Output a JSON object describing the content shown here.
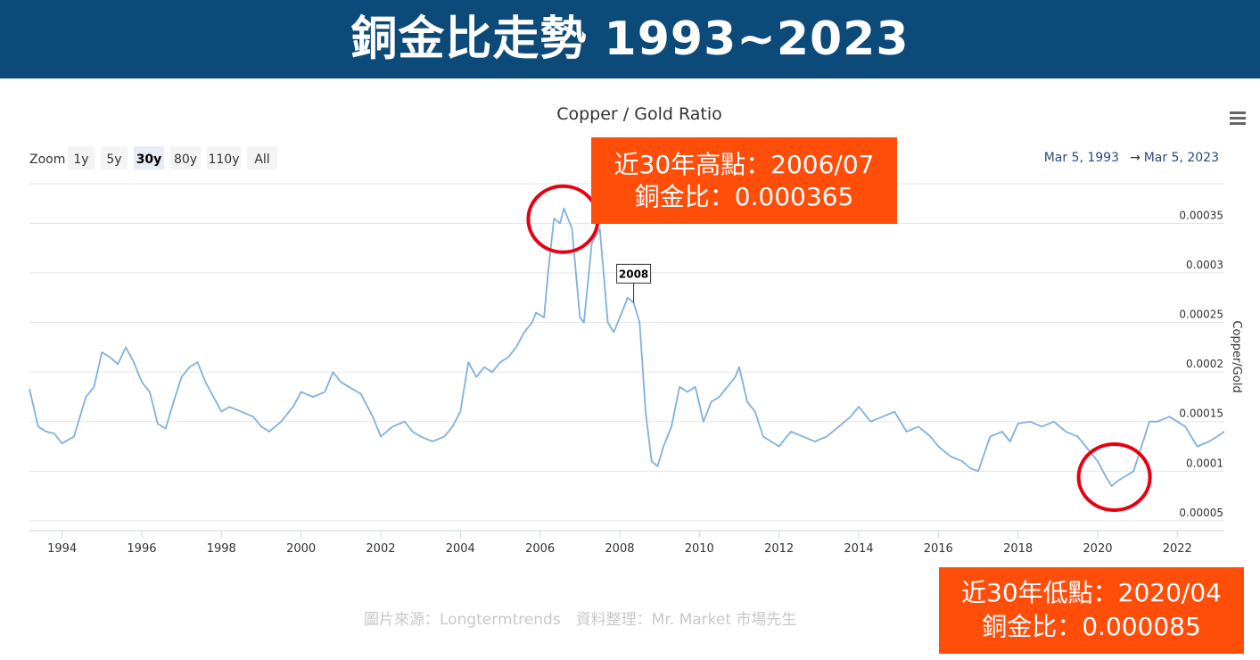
{
  "banner": {
    "title": "銅金比走勢 1993~2023",
    "bg_color": "#0c4a7a"
  },
  "chart_data": {
    "type": "line",
    "title": "Copper / Gold Ratio",
    "ylabel": "Copper/Gold",
    "xlim": [
      1993.18,
      2023.18
    ],
    "ylim": [
      4e-05,
      0.00039
    ],
    "x_ticks": [
      "1994",
      "1996",
      "1998",
      "2000",
      "2002",
      "2004",
      "2006",
      "2008",
      "2010",
      "2012",
      "2014",
      "2016",
      "2018",
      "2020",
      "2022"
    ],
    "y_ticks": [
      "0.00005",
      "0.0001",
      "0.00015",
      "0.0002",
      "0.00025",
      "0.0003",
      "0.00035"
    ],
    "grid": true,
    "line_color": "#7fb1dd",
    "series": [
      {
        "x": [
          1993.18,
          1993.4,
          1993.6,
          1993.8,
          1994.0,
          1994.3,
          1994.6,
          1994.8,
          1995.0,
          1995.2,
          1995.4,
          1995.6,
          1995.8,
          1996.0,
          1996.2,
          1996.4,
          1996.6,
          1996.8,
          1997.0,
          1997.2,
          1997.4,
          1997.6,
          1997.8,
          1998.0,
          1998.2,
          1998.5,
          1998.8,
          1999.0,
          1999.2,
          1999.5,
          1999.8,
          2000.0,
          2000.3,
          2000.6,
          2000.8,
          2001.0,
          2001.2,
          2001.5,
          2001.8,
          2002.0,
          2002.3,
          2002.6,
          2002.8,
          2003.0,
          2003.3,
          2003.6,
          2003.8,
          2004.0,
          2004.2,
          2004.4,
          2004.6,
          2004.8,
          2005.0,
          2005.2,
          2005.4,
          2005.6,
          2005.8,
          2005.9,
          2006.1,
          2006.2,
          2006.35,
          2006.5,
          2006.6,
          2006.8,
          2007.0,
          2007.1,
          2007.3,
          2007.5,
          2007.7,
          2007.85,
          2008.0,
          2008.2,
          2008.35,
          2008.5,
          2008.65,
          2008.8,
          2008.95,
          2009.1,
          2009.3,
          2009.5,
          2009.7,
          2009.9,
          2010.1,
          2010.3,
          2010.5,
          2010.7,
          2010.9,
          2011.0,
          2011.2,
          2011.4,
          2011.6,
          2011.8,
          2012.0,
          2012.3,
          2012.6,
          2012.9,
          2013.2,
          2013.5,
          2013.8,
          2014.0,
          2014.3,
          2014.6,
          2014.9,
          2015.2,
          2015.5,
          2015.8,
          2016.0,
          2016.3,
          2016.6,
          2016.8,
          2017.0,
          2017.3,
          2017.6,
          2017.8,
          2018.0,
          2018.3,
          2018.6,
          2018.9,
          2019.2,
          2019.5,
          2019.8,
          2020.0,
          2020.2,
          2020.35,
          2020.5,
          2020.7,
          2020.9,
          2021.1,
          2021.3,
          2021.5,
          2021.8,
          2022.0,
          2022.2,
          2022.5,
          2022.8,
          2023.0,
          2023.18
        ],
        "y": [
          0.000183,
          0.000145,
          0.00014,
          0.000138,
          0.000128,
          0.000135,
          0.000175,
          0.000185,
          0.00022,
          0.000215,
          0.000208,
          0.000225,
          0.00021,
          0.00019,
          0.00018,
          0.000148,
          0.000143,
          0.00017,
          0.000195,
          0.000205,
          0.00021,
          0.00019,
          0.000175,
          0.00016,
          0.000165,
          0.00016,
          0.000155,
          0.000145,
          0.00014,
          0.00015,
          0.000165,
          0.00018,
          0.000175,
          0.00018,
          0.0002,
          0.00019,
          0.000185,
          0.000178,
          0.000155,
          0.000135,
          0.000145,
          0.00015,
          0.00014,
          0.000135,
          0.00013,
          0.000135,
          0.000145,
          0.00016,
          0.00021,
          0.000195,
          0.000205,
          0.0002,
          0.00021,
          0.000215,
          0.000225,
          0.00024,
          0.00025,
          0.00026,
          0.000255,
          0.0003,
          0.000355,
          0.00035,
          0.000365,
          0.000345,
          0.000255,
          0.00025,
          0.00033,
          0.000345,
          0.00025,
          0.00024,
          0.000255,
          0.000275,
          0.00027,
          0.00025,
          0.00016,
          0.00011,
          0.000105,
          0.000125,
          0.000145,
          0.000185,
          0.00018,
          0.000185,
          0.00015,
          0.00017,
          0.000175,
          0.000185,
          0.000195,
          0.000205,
          0.00017,
          0.00016,
          0.000135,
          0.00013,
          0.000125,
          0.00014,
          0.000135,
          0.00013,
          0.000135,
          0.000145,
          0.000155,
          0.000165,
          0.00015,
          0.000155,
          0.00016,
          0.00014,
          0.000145,
          0.000135,
          0.000125,
          0.000115,
          0.00011,
          0.000103,
          0.0001,
          0.000135,
          0.00014,
          0.00013,
          0.000148,
          0.00015,
          0.000145,
          0.00015,
          0.00014,
          0.000135,
          0.00012,
          0.00011,
          9.5e-05,
          8.5e-05,
          9e-05,
          9.5e-05,
          0.0001,
          0.000125,
          0.00015,
          0.00015,
          0.000155,
          0.00015,
          0.000145,
          0.000125,
          0.00013,
          0.000135,
          0.00014
        ]
      }
    ]
  },
  "zoom": {
    "label": "Zoom",
    "buttons": [
      "1y",
      "5y",
      "30y",
      "80y",
      "110y",
      "All"
    ],
    "active": "30y"
  },
  "range": {
    "from": "Mar 5, 1993",
    "arrow": "→",
    "to": "Mar 5, 2023"
  },
  "flag": {
    "label": "2008",
    "x": 2008.35,
    "y": 0.00027
  },
  "callouts": {
    "high": {
      "line1": "近30年高點：2006/07",
      "line2": "銅金比：0.000365",
      "x": 2006.6,
      "y": 0.000365
    },
    "low": {
      "line1": "近30年低點：2020/04",
      "line2": "銅金比：0.000085",
      "x": 2020.35,
      "y": 8.5e-05
    },
    "color": "#ff4d0a",
    "circle_color": "#e60012"
  },
  "source": "圖片來源：Longtermtrends　資料整理：Mr. Market 市場先生"
}
